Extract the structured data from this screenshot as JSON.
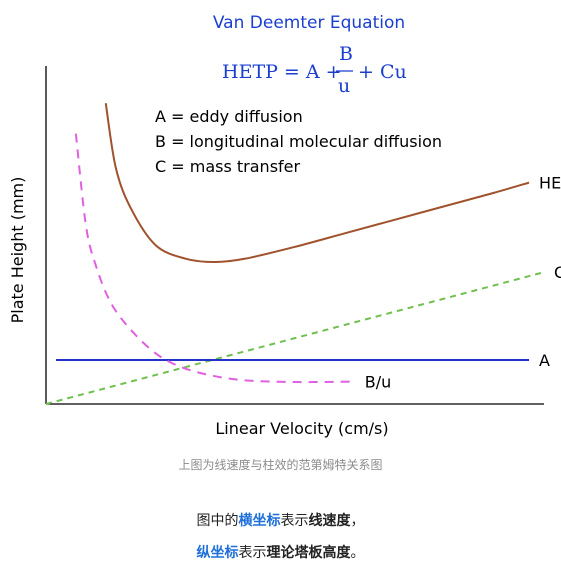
{
  "chart_data": {
    "type": "line",
    "title": "Van Deemter Equation",
    "equation": {
      "lhs": "HETP = A + ",
      "numerator": "B",
      "denominator": "u",
      "rhs": "+ Cu"
    },
    "legend_terms": [
      "A = eddy diffusion",
      "B = longitudinal molecular diffusion",
      "C = mass transfer"
    ],
    "xlabel": "Linear Velocity (cm/s)",
    "ylabel": "Plate Height (mm)",
    "xlim": [
      0,
      10
    ],
    "ylim": [
      0,
      10
    ],
    "series": [
      {
        "name": "HETP",
        "color": "#a0522d",
        "dash": "none",
        "x": [
          1.2,
          1.4,
          1.7,
          2.2,
          2.8,
          3.4,
          4.0,
          5.0,
          6.0,
          7.0,
          8.0,
          9.0,
          9.7
        ],
        "y": [
          8.9,
          7.0,
          5.8,
          4.7,
          4.3,
          4.2,
          4.3,
          4.65,
          5.05,
          5.45,
          5.85,
          6.25,
          6.55
        ]
      },
      {
        "name": "Cu",
        "color": "#70c050",
        "dash": "6,5",
        "x": [
          0,
          10
        ],
        "y": [
          0,
          3.9
        ]
      },
      {
        "name": "A",
        "color": "#2233cc",
        "dash": "none",
        "x": [
          0.2,
          9.7
        ],
        "y": [
          1.3,
          1.3
        ]
      },
      {
        "name": "B/u",
        "color": "#e060e0",
        "dash": "9,7",
        "x": [
          0.6,
          0.8,
          1.0,
          1.3,
          1.7,
          2.2,
          2.7,
          3.3,
          4.0,
          5.0,
          6.0,
          6.2
        ],
        "y": [
          8.0,
          5.3,
          4.1,
          3.0,
          2.2,
          1.5,
          1.1,
          0.85,
          0.7,
          0.65,
          0.66,
          0.66
        ]
      }
    ]
  },
  "caption": "上图为线速度与柱效的范第姆特关系图",
  "note1": {
    "p1": "图中的",
    "b1": "横坐标",
    "p2": "表示",
    "s1": "线速度",
    "p3": "，"
  },
  "note2": {
    "b1": "纵坐标",
    "p1": "表示",
    "s1": "理论塔板高度",
    "p2": "。"
  }
}
